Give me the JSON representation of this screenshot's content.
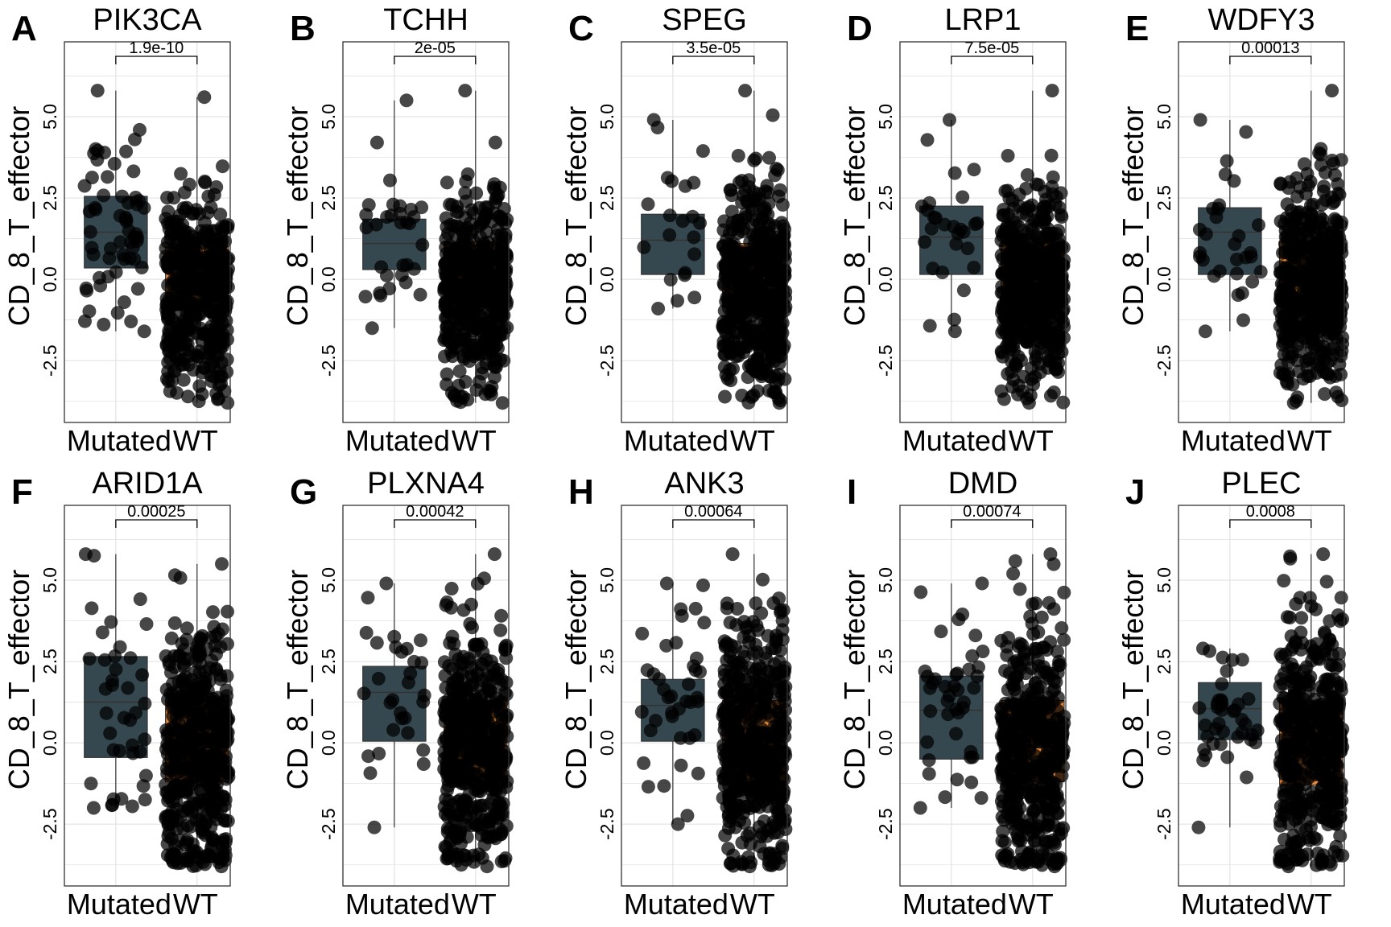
{
  "figure": {
    "colors": {
      "mutated_box": "#36484f",
      "wt_box": "#e5883a",
      "point": "#000000",
      "grid": "#e3e3e3",
      "panel_border": "#333333"
    }
  },
  "chart_data": [
    {
      "type": "box",
      "letter": "A",
      "title": "PIK3CA",
      "pvalue": "1.9e-10",
      "ylabel": "CD_8_T_effector",
      "categories": [
        "Mutated",
        "WT"
      ],
      "ylim": [
        -4.4,
        7.3
      ],
      "yticks": [
        "-2.5",
        "0.0",
        "2.5",
        "5.0"
      ],
      "series": [
        {
          "category": "Mutated",
          "q1": 0.35,
          "median": 1.45,
          "q3": 2.55,
          "min": -1.6,
          "max": 5.8,
          "n": 60
        },
        {
          "category": "WT",
          "q1": -0.95,
          "median": -0.4,
          "q3": 1.0,
          "min": -3.8,
          "max": 5.6,
          "n": 450
        }
      ]
    },
    {
      "type": "box",
      "letter": "B",
      "title": "TCHH",
      "pvalue": "2e-05",
      "ylabel": "CD_8_T_effector",
      "categories": [
        "Mutated",
        "WT"
      ],
      "ylim": [
        -4.4,
        7.3
      ],
      "yticks": [
        "-2.5",
        "0.0",
        "2.5",
        "5.0"
      ],
      "series": [
        {
          "category": "Mutated",
          "q1": 0.3,
          "median": 1.1,
          "q3": 1.85,
          "min": -1.5,
          "max": 5.5,
          "n": 32
        },
        {
          "category": "WT",
          "q1": -0.85,
          "median": -0.25,
          "q3": 1.15,
          "min": -3.8,
          "max": 5.8,
          "n": 480
        }
      ]
    },
    {
      "type": "box",
      "letter": "C",
      "title": "SPEG",
      "pvalue": "3.5e-05",
      "ylabel": "CD_8_T_effector",
      "categories": [
        "Mutated",
        "WT"
      ],
      "ylim": [
        -4.4,
        7.3
      ],
      "yticks": [
        "-2.5",
        "0.0",
        "2.5",
        "5.0"
      ],
      "series": [
        {
          "category": "Mutated",
          "q1": 0.15,
          "median": 1.2,
          "q3": 2.0,
          "min": -0.9,
          "max": 4.9,
          "n": 22
        },
        {
          "category": "WT",
          "q1": -0.85,
          "median": -0.3,
          "q3": 1.1,
          "min": -3.8,
          "max": 5.8,
          "n": 490
        }
      ]
    },
    {
      "type": "box",
      "letter": "D",
      "title": "LRP1",
      "pvalue": "7.5e-05",
      "ylabel": "CD_8_T_effector",
      "categories": [
        "Mutated",
        "WT"
      ],
      "ylim": [
        -4.4,
        7.3
      ],
      "yticks": [
        "-2.5",
        "0.0",
        "2.5",
        "5.0"
      ],
      "series": [
        {
          "category": "Mutated",
          "q1": 0.15,
          "median": 1.3,
          "q3": 2.25,
          "min": -1.6,
          "max": 4.9,
          "n": 28
        },
        {
          "category": "WT",
          "q1": -0.85,
          "median": -0.25,
          "q3": 1.15,
          "min": -3.8,
          "max": 5.8,
          "n": 485
        }
      ]
    },
    {
      "type": "box",
      "letter": "E",
      "title": "WDFY3",
      "pvalue": "0.00013",
      "ylabel": "CD_8_T_effector",
      "categories": [
        "Mutated",
        "WT"
      ],
      "ylim": [
        -4.4,
        7.3
      ],
      "yticks": [
        "-2.5",
        "0.0",
        "2.5",
        "5.0"
      ],
      "series": [
        {
          "category": "Mutated",
          "q1": 0.15,
          "median": 1.45,
          "q3": 2.2,
          "min": -1.6,
          "max": 4.9,
          "n": 30
        },
        {
          "category": "WT",
          "q1": -0.85,
          "median": -0.2,
          "q3": 1.15,
          "min": -3.8,
          "max": 5.8,
          "n": 482
        }
      ]
    },
    {
      "type": "box",
      "letter": "F",
      "title": "ARID1A",
      "pvalue": "0.00025",
      "ylabel": "CD_8_T_effector",
      "categories": [
        "Mutated",
        "WT"
      ],
      "ylim": [
        -4.4,
        7.3
      ],
      "yticks": [
        "-2.5",
        "0.0",
        "2.5",
        "5.0"
      ],
      "series": [
        {
          "category": "Mutated",
          "q1": -0.45,
          "median": 1.25,
          "q3": 2.65,
          "min": -2.0,
          "max": 5.8,
          "n": 40
        },
        {
          "category": "WT",
          "q1": -1.2,
          "median": -0.15,
          "q3": 1.3,
          "min": -3.8,
          "max": 5.5,
          "n": 472
        }
      ]
    },
    {
      "type": "box",
      "letter": "G",
      "title": "PLXNA4",
      "pvalue": "0.00042",
      "ylabel": "CD_8_T_effector",
      "categories": [
        "Mutated",
        "WT"
      ],
      "ylim": [
        -4.4,
        7.3
      ],
      "yticks": [
        "-2.5",
        "0.0",
        "2.5",
        "5.0"
      ],
      "series": [
        {
          "category": "Mutated",
          "q1": 0.05,
          "median": 1.55,
          "q3": 2.35,
          "min": -2.6,
          "max": 4.9,
          "n": 30
        },
        {
          "category": "WT",
          "q1": -1.2,
          "median": -0.1,
          "q3": 1.3,
          "min": -3.8,
          "max": 5.8,
          "n": 482
        }
      ]
    },
    {
      "type": "box",
      "letter": "H",
      "title": "ANK3",
      "pvalue": "0.00064",
      "ylabel": "CD_8_T_effector",
      "categories": [
        "Mutated",
        "WT"
      ],
      "ylim": [
        -4.4,
        7.3
      ],
      "yticks": [
        "-2.5",
        "0.0",
        "2.5",
        "5.0"
      ],
      "series": [
        {
          "category": "Mutated",
          "q1": 0.05,
          "median": 1.15,
          "q3": 1.95,
          "min": -2.5,
          "max": 4.9,
          "n": 40
        },
        {
          "category": "WT",
          "q1": -1.2,
          "median": -0.1,
          "q3": 1.3,
          "min": -3.8,
          "max": 5.8,
          "n": 472
        }
      ]
    },
    {
      "type": "box",
      "letter": "I",
      "title": "DMD",
      "pvalue": "0.00074",
      "ylabel": "CD_8_T_effector",
      "categories": [
        "Mutated",
        "WT"
      ],
      "ylim": [
        -4.4,
        7.3
      ],
      "yticks": [
        "-2.5",
        "0.0",
        "2.5",
        "5.0"
      ],
      "series": [
        {
          "category": "Mutated",
          "q1": -0.5,
          "median": 1.0,
          "q3": 2.05,
          "min": -2.0,
          "max": 4.9,
          "n": 42
        },
        {
          "category": "WT",
          "q1": -1.2,
          "median": -0.15,
          "q3": 1.3,
          "min": -3.8,
          "max": 5.8,
          "n": 470
        }
      ]
    },
    {
      "type": "box",
      "letter": "J",
      "title": "PLEC",
      "pvalue": "0.0008",
      "ylabel": "CD_8_T_effector",
      "categories": [
        "Mutated",
        "WT"
      ],
      "ylim": [
        -4.4,
        7.3
      ],
      "yticks": [
        "-2.5",
        "0.0",
        "2.5",
        "5.0"
      ],
      "series": [
        {
          "category": "Mutated",
          "q1": 0.1,
          "median": 1.05,
          "q3": 1.85,
          "min": -2.6,
          "max": 2.9,
          "n": 40
        },
        {
          "category": "WT",
          "q1": -1.3,
          "median": -0.2,
          "q3": 1.25,
          "min": -3.8,
          "max": 5.8,
          "n": 472
        }
      ]
    }
  ]
}
